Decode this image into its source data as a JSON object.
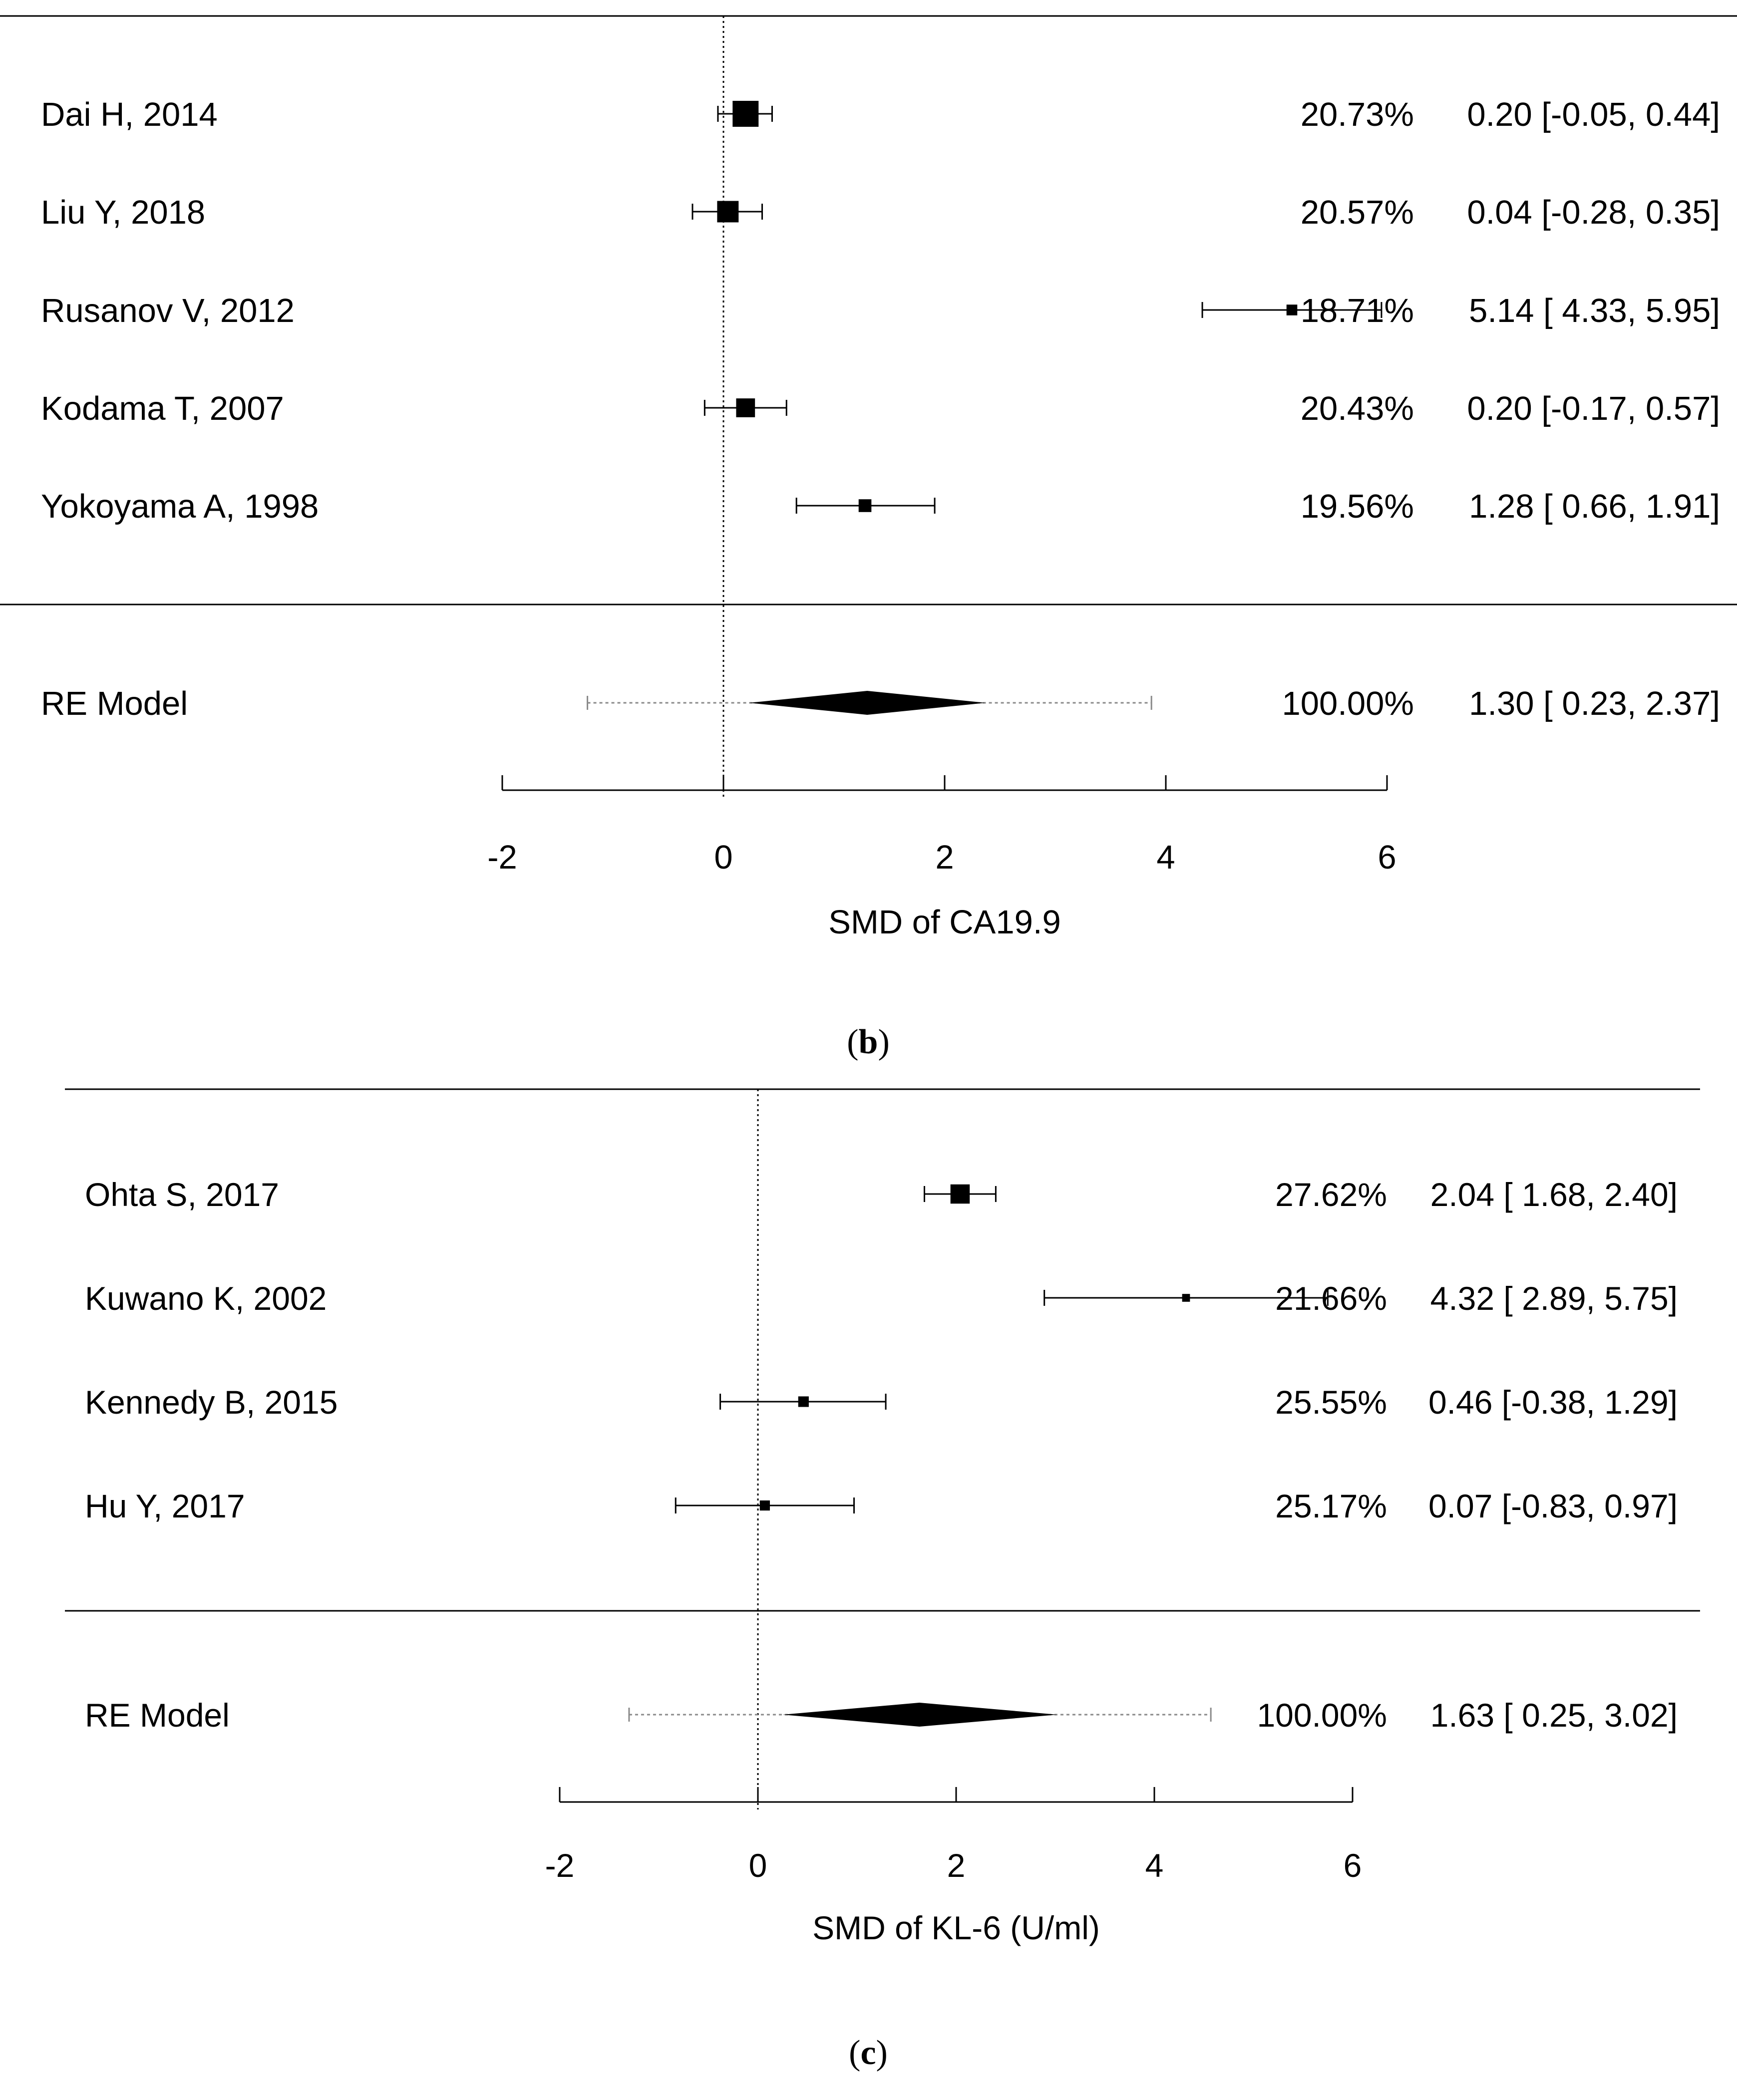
{
  "chart_data": [
    {
      "type": "forest",
      "panel_label": "b",
      "title": "",
      "xlabel": "SMD of CA19.9",
      "xlim": [
        -2,
        6
      ],
      "xticks": [
        -2,
        0,
        2,
        4,
        6
      ],
      "reference_line": 0,
      "studies": [
        {
          "name": "Dai H, 2014",
          "weight": "20.73%",
          "estimate_text": "0.20 [-0.05, 0.44]",
          "est": 0.2,
          "lo": -0.05,
          "hi": 0.44,
          "w": 20.73
        },
        {
          "name": "Liu Y, 2018",
          "weight": "20.57%",
          "estimate_text": "0.04 [-0.28, 0.35]",
          "est": 0.04,
          "lo": -0.28,
          "hi": 0.35,
          "w": 20.57
        },
        {
          "name": "Rusanov V, 2012",
          "weight": "18.71%",
          "estimate_text": "5.14 [ 4.33, 5.95]",
          "est": 5.14,
          "lo": 4.33,
          "hi": 5.95,
          "w": 18.71
        },
        {
          "name": "Kodama T, 2007",
          "weight": "20.43%",
          "estimate_text": "0.20 [-0.17, 0.57]",
          "est": 0.2,
          "lo": -0.17,
          "hi": 0.57,
          "w": 20.43
        },
        {
          "name": "Yokoyama A, 1998",
          "weight": "19.56%",
          "estimate_text": "1.28 [ 0.66, 1.91]",
          "est": 1.28,
          "lo": 0.66,
          "hi": 1.91,
          "w": 19.56
        }
      ],
      "summary": {
        "name": "RE Model",
        "weight": "100.00%",
        "estimate_text": "1.30 [ 0.23, 2.37]",
        "est": 1.3,
        "lo": 0.23,
        "hi": 2.37,
        "pi_lo": -1.23,
        "pi_hi": 3.87
      }
    },
    {
      "type": "forest",
      "panel_label": "c",
      "title": "",
      "xlabel": "SMD of KL-6 (U/ml)",
      "xlim": [
        -2,
        6
      ],
      "xticks": [
        -2,
        0,
        2,
        4,
        6
      ],
      "reference_line": 0,
      "studies": [
        {
          "name": "Ohta S, 2017",
          "weight": "27.62%",
          "estimate_text": "2.04 [ 1.68, 2.40]",
          "est": 2.04,
          "lo": 1.68,
          "hi": 2.4,
          "w": 27.62
        },
        {
          "name": "Kuwano K, 2002",
          "weight": "21.66%",
          "estimate_text": "4.32 [ 2.89, 5.75]",
          "est": 4.32,
          "lo": 2.89,
          "hi": 5.75,
          "w": 21.66
        },
        {
          "name": "Kennedy B, 2015",
          "weight": "25.55%",
          "estimate_text": "0.46 [-0.38, 1.29]",
          "est": 0.46,
          "lo": -0.38,
          "hi": 1.29,
          "w": 25.55
        },
        {
          "name": "Hu Y, 2017",
          "weight": "25.17%",
          "estimate_text": "0.07 [-0.83, 0.97]",
          "est": 0.07,
          "lo": -0.83,
          "hi": 0.97,
          "w": 25.17
        }
      ],
      "summary": {
        "name": "RE Model",
        "weight": "100.00%",
        "estimate_text": "1.63 [ 0.25, 3.02]",
        "est": 1.63,
        "lo": 0.25,
        "hi": 3.02,
        "pi_lo": -1.3,
        "pi_hi": 4.57
      }
    }
  ],
  "colors": {
    "ink": "#000000",
    "pi_line": "#8a8a8a",
    "background": "#ffffff"
  }
}
